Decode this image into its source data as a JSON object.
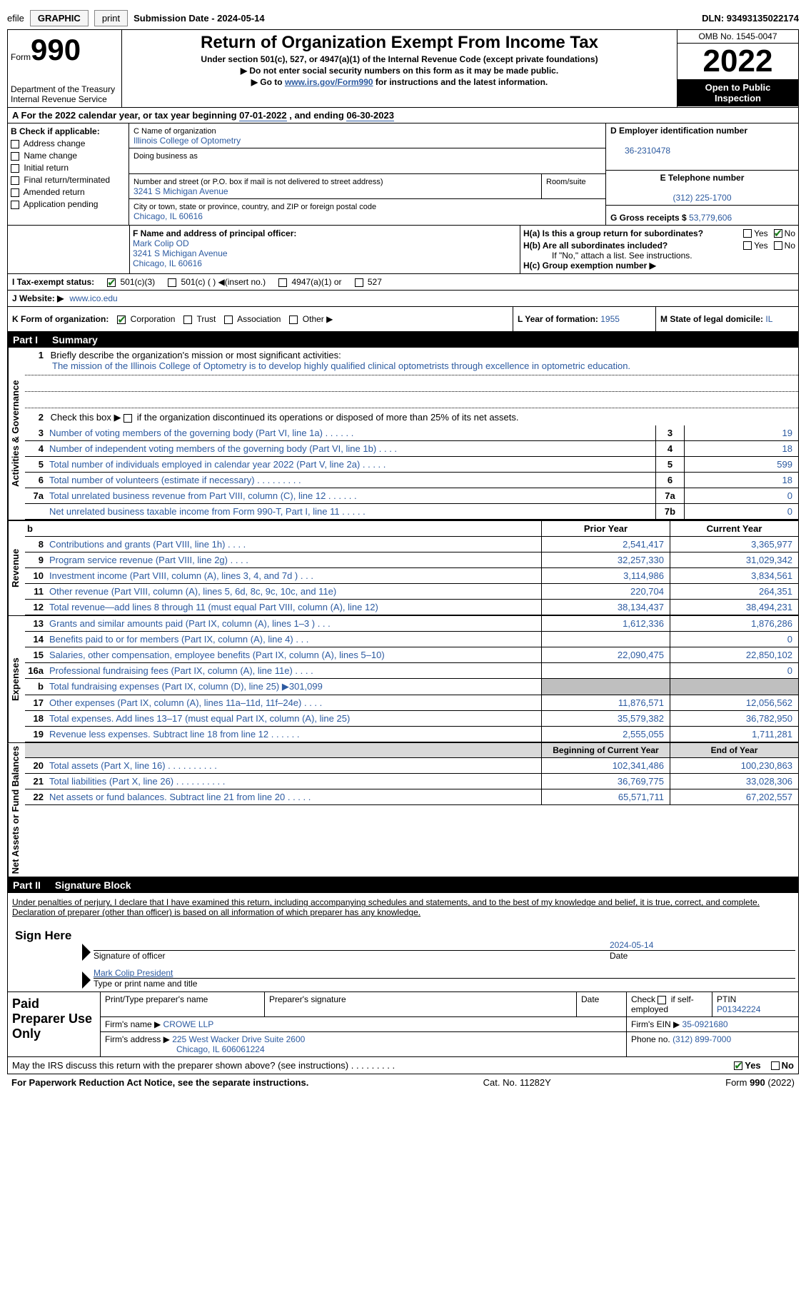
{
  "top": {
    "efile_prefix": "efile",
    "btn_graphic": "GRAPHIC",
    "btn_print": "print",
    "submission_label": "Submission Date - ",
    "submission_date": "2024-05-14",
    "dln_label": "DLN: ",
    "dln": "93493135022174"
  },
  "header": {
    "form_word": "Form",
    "form_num": "990",
    "title": "Return of Organization Exempt From Income Tax",
    "subtitle": "Under section 501(c), 527, or 4947(a)(1) of the Internal Revenue Code (except private foundations)",
    "notice1_arrow": "▶",
    "notice1": "Do not enter social security numbers on this form as it may be made public.",
    "notice2_prefix": "▶ Go to ",
    "notice2_link": "www.irs.gov/Form990",
    "notice2_suffix": " for instructions and the latest information.",
    "dept": "Department of the Treasury",
    "irs": "Internal Revenue Service",
    "omb": "OMB No. 1545-0047",
    "year": "2022",
    "open_line1": "Open to Public",
    "open_line2": "Inspection"
  },
  "a_line": {
    "text_1": "A For the 2022 calendar year, or tax year beginning ",
    "begin": "07-01-2022",
    "text_2": "   , and ending ",
    "end": "06-30-2023"
  },
  "b": {
    "label": "B Check if applicable:",
    "items": [
      "Address change",
      "Name change",
      "Initial return",
      "Final return/terminated",
      "Amended return",
      "Application pending"
    ]
  },
  "c": {
    "name_label": "C Name of organization",
    "name": "Illinois College of Optometry",
    "dba_label": "Doing business as",
    "addr_label": "Number and street (or P.O. box if mail is not delivered to street address)",
    "addr": "3241 S Michigan Avenue",
    "room_label": "Room/suite",
    "city_label": "City or town, state or province, country, and ZIP or foreign postal code",
    "city": "Chicago, IL  60616"
  },
  "d": {
    "ein_label": "D Employer identification number",
    "ein": "36-2310478",
    "phone_label": "E Telephone number",
    "phone": "(312) 225-1700",
    "gross_label": "G Gross receipts $ ",
    "gross": "53,779,606"
  },
  "f": {
    "label": "F  Name and address of principal officer:",
    "name": "Mark Colip OD",
    "addr": "3241 S Michigan Avenue",
    "city": "Chicago, IL  60616"
  },
  "h": {
    "a_label": "H(a)  Is this a group return for subordinates?",
    "yes": "Yes",
    "no": "No",
    "b_label": "H(b)  Are all subordinates included?",
    "b_note": "If \"No,\" attach a list. See instructions.",
    "c_label": "H(c)  Group exemption number ▶"
  },
  "i": {
    "label": "I    Tax-exempt status:",
    "o1": "501(c)(3)",
    "o2": "501(c) (  ) ◀(insert no.)",
    "o3": "4947(a)(1) or",
    "o4": "527"
  },
  "j": {
    "label": "J   Website: ▶",
    "val": "www.ico.edu"
  },
  "k": {
    "label": "K Form of organization:",
    "o1": "Corporation",
    "o2": "Trust",
    "o3": "Association",
    "o4": "Other ▶"
  },
  "l": {
    "label": "L Year of formation: ",
    "val": "1955"
  },
  "m": {
    "label": "M State of legal domicile: ",
    "val": "IL"
  },
  "part1": {
    "label": "Part I",
    "title": "Summary"
  },
  "part2": {
    "label": "Part II",
    "title": "Signature Block"
  },
  "side_labels": {
    "act": "Activities & Governance",
    "rev": "Revenue",
    "exp": "Expenses",
    "net": "Net Assets or Fund Balances"
  },
  "mission": {
    "q1_label": "Briefly describe the organization's mission or most significant activities:",
    "q1_text": "The mission of the Illinois College of Optometry is to develop highly qualified clinical optometrists through excellence in optometric education.",
    "q2_label": "Check this box ▶",
    "q2_text": " if the organization discontinued its operations or disposed of more than 25% of its net assets."
  },
  "gov_lines": [
    {
      "n": "3",
      "t": "Number of voting members of the governing body (Part VI, line 1a)   .    .    .    .    .    .",
      "b": "3",
      "v": "19"
    },
    {
      "n": "4",
      "t": "Number of independent voting members of the governing body (Part VI, line 1b)   .    .    .    .",
      "b": "4",
      "v": "18"
    },
    {
      "n": "5",
      "t": "Total number of individuals employed in calendar year 2022 (Part V, line 2a)   .    .    .    .    .",
      "b": "5",
      "v": "599"
    },
    {
      "n": "6",
      "t": "Total number of volunteers (estimate if necessary)    .    .    .    .    .    .    .    .    .",
      "b": "6",
      "v": "18"
    },
    {
      "n": "7a",
      "t": "Total unrelated business revenue from Part VIII, column (C), line 12   .    .    .    .    .    .",
      "b": "7a",
      "v": "0"
    },
    {
      "n": "",
      "t": "Net unrelated business taxable income from Form 990-T, Part I, line 11   .    .    .    .    .",
      "b": "7b",
      "v": "0"
    }
  ],
  "col_heads": {
    "b": "b",
    "py": "Prior Year",
    "cy": "Current Year"
  },
  "rev_lines": [
    {
      "n": "8",
      "t": "Contributions and grants (Part VIII, line 1h)    .    .    .    .",
      "v1": "2,541,417",
      "v2": "3,365,977"
    },
    {
      "n": "9",
      "t": "Program service revenue (Part VIII, line 2g)    .    .    .    .",
      "v1": "32,257,330",
      "v2": "31,029,342"
    },
    {
      "n": "10",
      "t": "Investment income (Part VIII, column (A), lines 3, 4, and 7d )    .    .    .",
      "v1": "3,114,986",
      "v2": "3,834,561"
    },
    {
      "n": "11",
      "t": "Other revenue (Part VIII, column (A), lines 5, 6d, 8c, 9c, 10c, and 11e)",
      "v1": "220,704",
      "v2": "264,351"
    },
    {
      "n": "12",
      "t": "Total revenue—add lines 8 through 11 (must equal Part VIII, column (A), line 12)",
      "v1": "38,134,437",
      "v2": "38,494,231"
    }
  ],
  "exp_lines": [
    {
      "n": "13",
      "t": "Grants and similar amounts paid (Part IX, column (A), lines 1–3 )    .    .    .",
      "v1": "1,612,336",
      "v2": "1,876,286"
    },
    {
      "n": "14",
      "t": "Benefits paid to or for members (Part IX, column (A), line 4)    .    .    .",
      "v1": "",
      "v2": "0"
    },
    {
      "n": "15",
      "t": "Salaries, other compensation, employee benefits (Part IX, column (A), lines 5–10)",
      "v1": "22,090,475",
      "v2": "22,850,102"
    },
    {
      "n": "16a",
      "t": "Professional fundraising fees (Part IX, column (A), line 11e)    .    .    .    .",
      "v1": "",
      "v2": "0"
    },
    {
      "n": "b",
      "t": "Total fundraising expenses (Part IX, column (D), line 25) ▶301,099",
      "v1": "shaded",
      "v2": "shaded"
    },
    {
      "n": "17",
      "t": "Other expenses (Part IX, column (A), lines 11a–11d, 11f–24e)    .    .    .    .",
      "v1": "11,876,571",
      "v2": "12,056,562"
    },
    {
      "n": "18",
      "t": "Total expenses. Add lines 13–17 (must equal Part IX, column (A), line 25)",
      "v1": "35,579,382",
      "v2": "36,782,950"
    },
    {
      "n": "19",
      "t": "Revenue less expenses. Subtract line 18 from line 12   .    .    .    .    .    .",
      "v1": "2,555,055",
      "v2": "1,711,281"
    }
  ],
  "net_heads": {
    "c1": "Beginning of Current Year",
    "c2": "End of Year"
  },
  "net_lines": [
    {
      "n": "20",
      "t": "Total assets (Part X, line 16)   .    .    .    .    .    .    .    .    .    .",
      "v1": "102,341,486",
      "v2": "100,230,863"
    },
    {
      "n": "21",
      "t": "Total liabilities (Part X, line 26)   .    .    .    .    .    .    .    .    .    .",
      "v1": "36,769,775",
      "v2": "33,028,306"
    },
    {
      "n": "22",
      "t": "Net assets or fund balances. Subtract line 21 from line 20   .    .    .    .    .",
      "v1": "65,571,711",
      "v2": "67,202,557"
    }
  ],
  "declare": "Under penalties of perjury, I declare that I have examined this return, including accompanying schedules and statements, and to the best of my knowledge and belief, it is true, correct, and complete. Declaration of preparer (other than officer) is based on all information of which preparer has any knowledge.",
  "sign": {
    "here": "Sign Here",
    "sig_label": "Signature of officer",
    "date_label": "Date",
    "date": "2024-05-14",
    "name": "Mark Colip  President",
    "name_label": "Type or print name and title"
  },
  "paid": {
    "label": "Paid Preparer Use Only",
    "h1": "Print/Type preparer's name",
    "h2": "Preparer's signature",
    "h3": "Date",
    "h4_pre": "Check",
    "h4_post": "if self-employed",
    "h5": "PTIN",
    "ptin": "P01342224",
    "firm_name_label": "Firm's name    ▶ ",
    "firm_name": "CROWE LLP",
    "firm_ein_label": "Firm's EIN ▶ ",
    "firm_ein": "35-0921680",
    "firm_addr_label": "Firm's address ▶ ",
    "firm_addr": "225 West Wacker Drive Suite 2600",
    "firm_city": "Chicago, IL  606061224",
    "phone_label": "Phone no. ",
    "phone": "(312) 899-7000"
  },
  "discuss": {
    "text": "May the IRS discuss this return with the preparer shown above? (see instructions)   .    .    .    .    .    .    .    .    .",
    "yes": "Yes",
    "no": "No"
  },
  "footer": {
    "pra": "For Paperwork Reduction Act Notice, see the separate instructions.",
    "cat": "Cat. No. 11282Y",
    "form": "Form 990 (2022)"
  }
}
